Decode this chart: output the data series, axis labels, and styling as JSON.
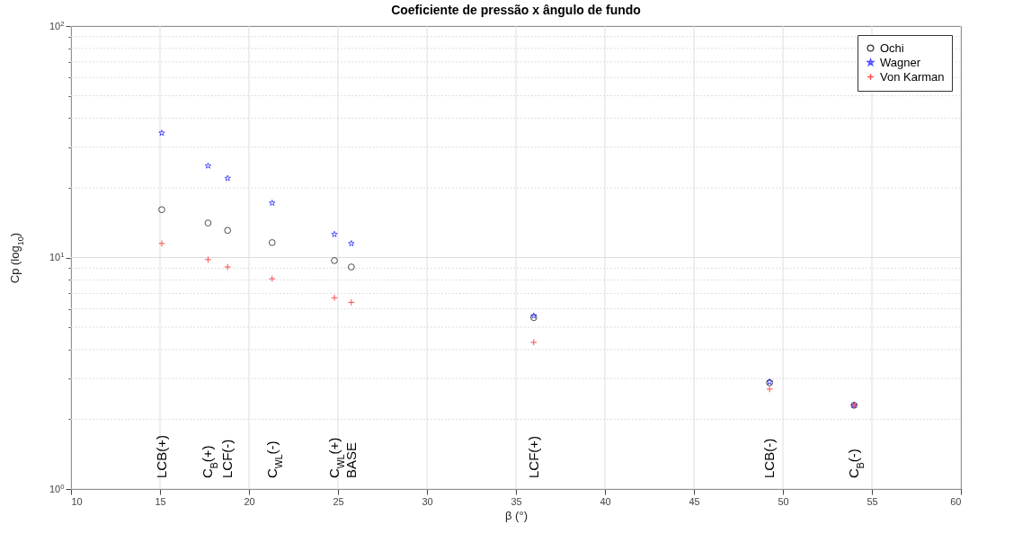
{
  "chart_data": {
    "type": "scatter",
    "title": "Coeficiente de pressão x ângulo de fundo",
    "xlabel": "β (°)",
    "ylabel": "Cp (log$_{10}$)",
    "x": [
      15.1,
      17.7,
      18.8,
      21.3,
      24.8,
      25.75,
      36.0,
      49.25,
      54.0
    ],
    "series": [
      {
        "name": "Ochi",
        "color": "#000000",
        "marker": "circle",
        "values": [
          16.1,
          14.1,
          13.1,
          11.6,
          9.7,
          9.1,
          5.5,
          2.88,
          2.3
        ]
      },
      {
        "name": "Wagner",
        "color": "#0000ff",
        "marker": "star",
        "values": [
          34.5,
          24.9,
          22.0,
          17.2,
          12.6,
          11.5,
          5.6,
          2.9,
          2.3
        ]
      },
      {
        "name": "Von Karman",
        "color": "#ff0000",
        "marker": "cross",
        "values": [
          11.5,
          9.8,
          9.1,
          8.1,
          6.7,
          6.4,
          4.3,
          2.7,
          2.3
        ]
      }
    ],
    "xlim": [
      10,
      60
    ],
    "xticks": [
      10,
      15,
      20,
      25,
      30,
      35,
      40,
      45,
      50,
      55,
      60
    ],
    "ylim": [
      1,
      100
    ],
    "log": true,
    "yticks": [
      {
        "value": 1,
        "label": "10$^{0}$"
      },
      {
        "value": 2,
        "label": null
      },
      {
        "value": 3,
        "label": null
      },
      {
        "value": 4,
        "label": null
      },
      {
        "value": 5,
        "label": null
      },
      {
        "value": 6,
        "label": null
      },
      {
        "value": 7,
        "label": null
      },
      {
        "value": 8,
        "label": null
      },
      {
        "value": 9,
        "label": null
      },
      {
        "value": 10,
        "label": "10$^{1}$"
      },
      {
        "value": 20,
        "label": null
      },
      {
        "value": 30,
        "label": null
      },
      {
        "value": 40,
        "label": null
      },
      {
        "value": 50,
        "label": null
      },
      {
        "value": 60,
        "label": null
      },
      {
        "value": 70,
        "label": null
      },
      {
        "value": 80,
        "label": null
      },
      {
        "value": 90,
        "label": null
      },
      {
        "value": 100,
        "label": "10$^{2}$"
      }
    ],
    "grid": true,
    "legend": "top right",
    "annotations": [
      "LCB(+)",
      "C$_{B}$(+)",
      "LCF(-)",
      "C$_{WL}$(-)",
      "C$_{WL}$(+)",
      "BASE",
      "LCF(+)",
      "LCB(-)",
      "C$_{B}$(-)"
    ]
  }
}
